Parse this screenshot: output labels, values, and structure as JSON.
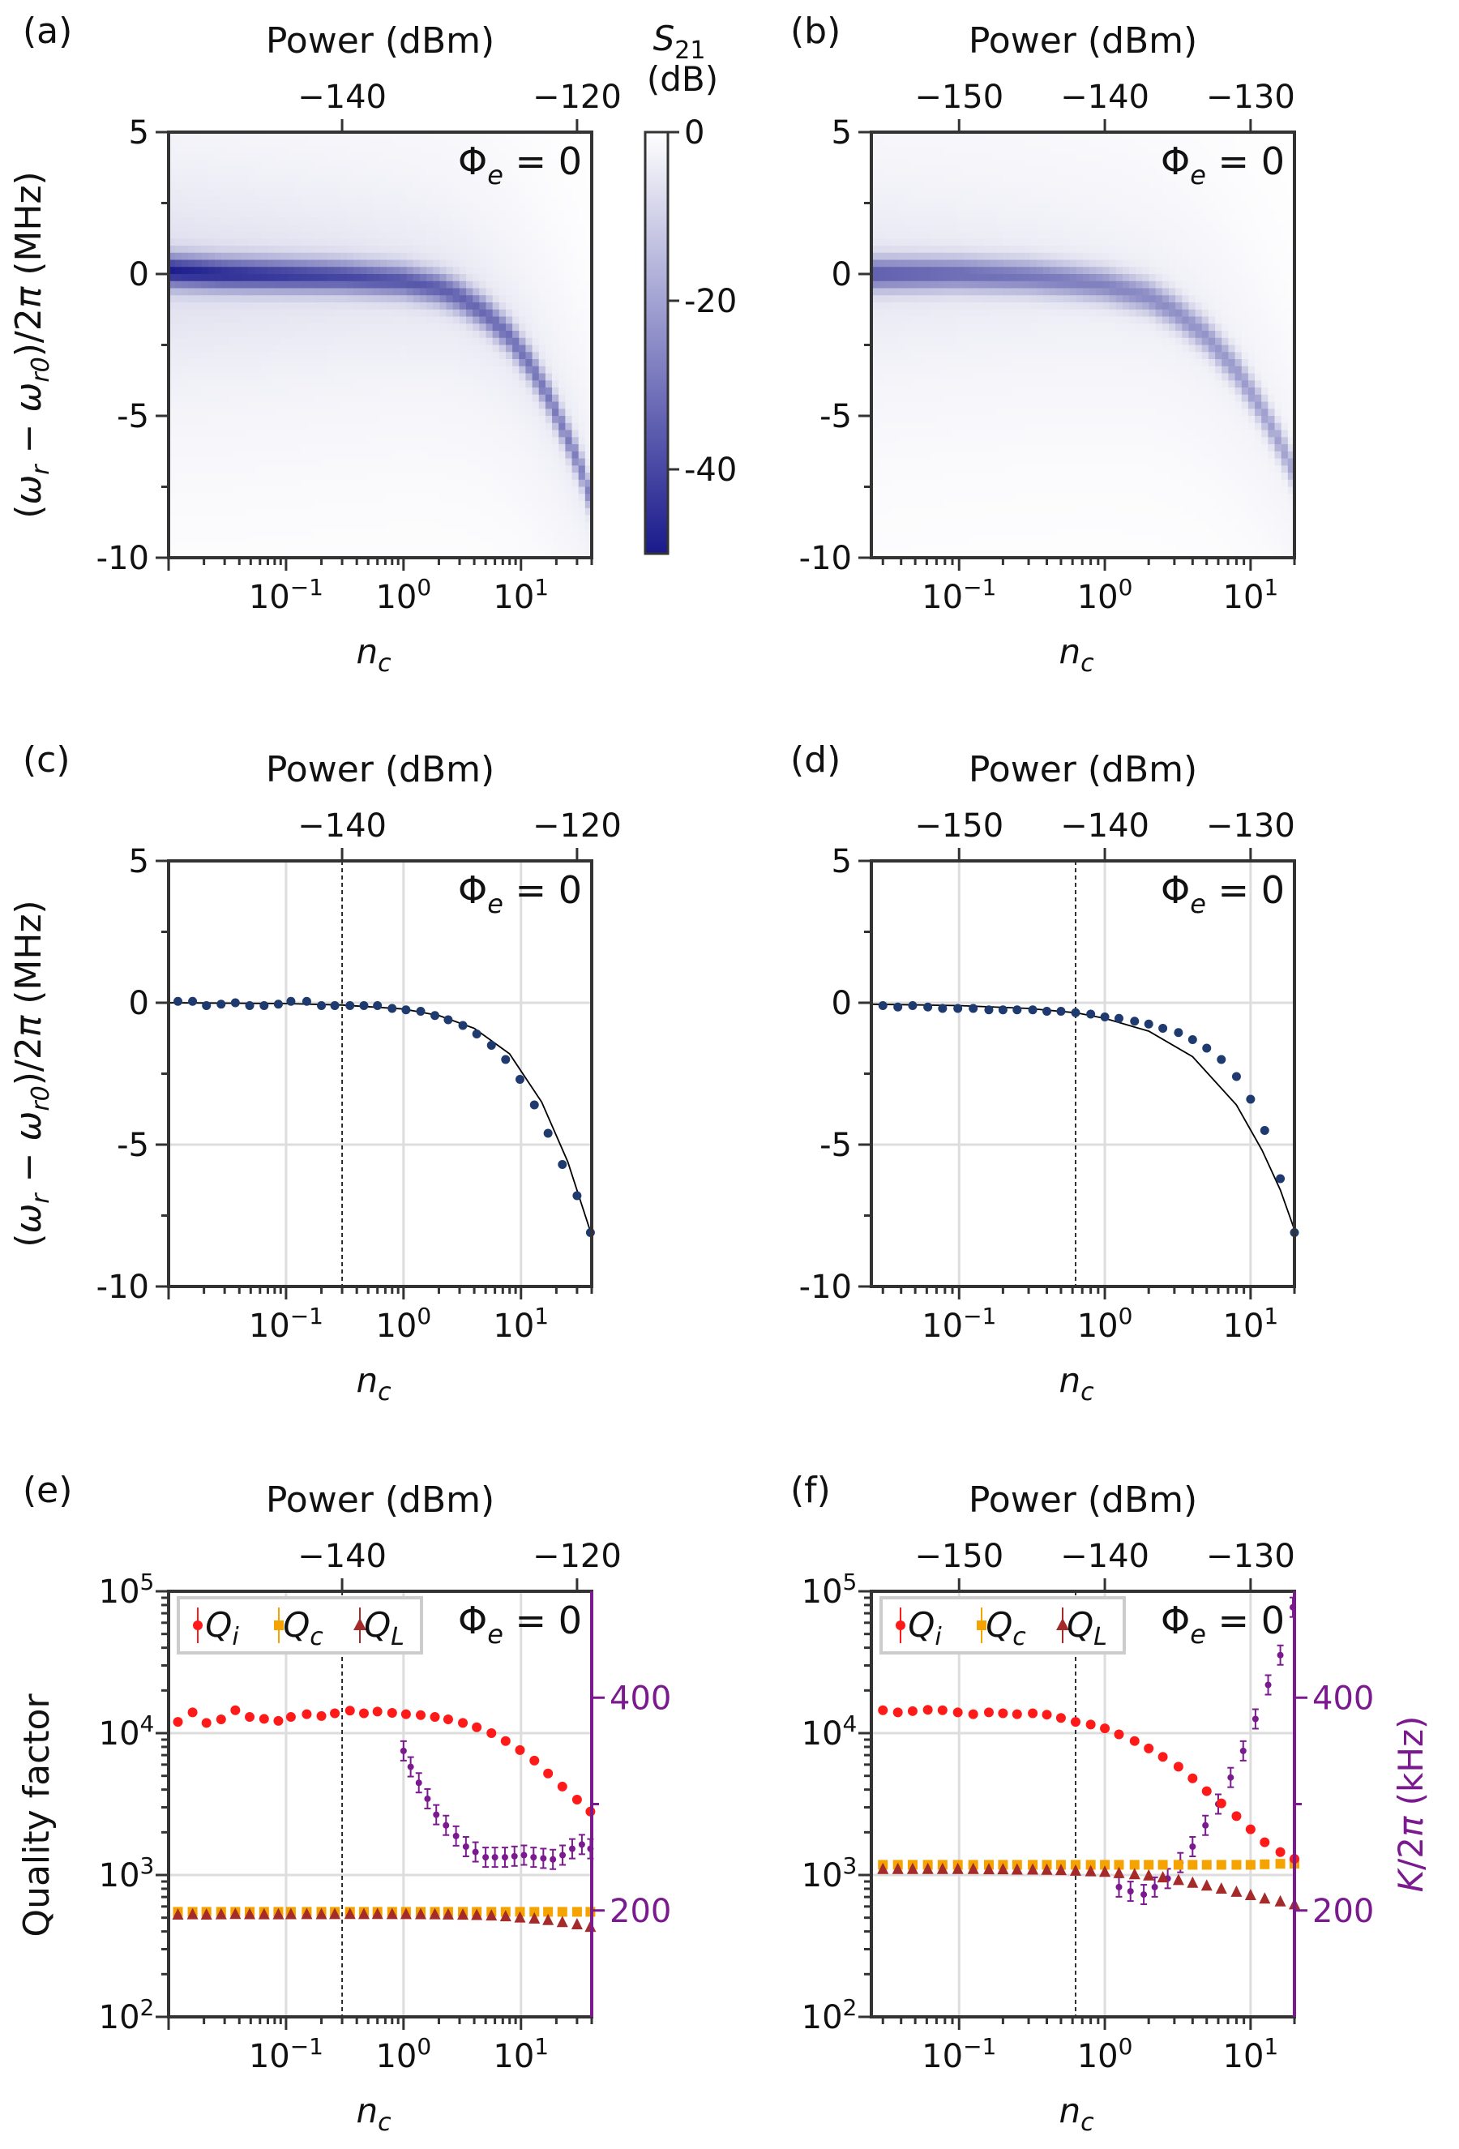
{
  "labels": {
    "panel_letters": [
      "(a)",
      "(b)",
      "(c)",
      "(d)",
      "(e)",
      "(f)"
    ],
    "top_axis_label": "Power (dBm)",
    "x_axis_label": "n",
    "x_axis_label_sub": "c",
    "y_axis_label": "(ω_r − ω_r0)/2π (MHz)",
    "q_axis_label": "Quality factor",
    "k_axis_label": "K/2π (kHz)",
    "phi_label": "Φ_e = 0",
    "colorbar_label_line1": "S21",
    "colorbar_label_line2": "(dB)"
  },
  "colors": {
    "heatmap_max": "#1a1a8c",
    "data_points": "#1f3a6e",
    "qi": "#ff1a1a",
    "qc": "#f5a300",
    "ql": "#a52a2a",
    "kerr": "#7b1a8f",
    "grid": "#dddddd"
  },
  "chart_data": [
    {
      "panel": "(a)",
      "type": "heatmap",
      "xlabel": "n_c",
      "xscale": "log",
      "xlim": [
        0.01,
        40
      ],
      "xticks": [
        "10^-1",
        "10^0",
        "10^1"
      ],
      "top_xlabel": "Power (dBm)",
      "top_xticks": [
        "−140",
        "−120"
      ],
      "ylabel": "(ω_r − ω_r0)/2π (MHz)",
      "ylim": [
        -10,
        5
      ],
      "yticks": [
        "5",
        "0",
        "-5",
        "-10"
      ],
      "annotation": "Φ_e = 0",
      "colorbar": {
        "label": "S21 (dB)",
        "range": [
          -50,
          0
        ],
        "ticks": [
          "0",
          "-20",
          "-40"
        ]
      },
      "resonance": {
        "n_c": [
          0.01,
          0.03,
          0.1,
          0.3,
          1,
          2,
          3,
          5,
          8,
          12,
          18,
          25,
          32,
          40
        ],
        "shift_mhz": [
          0.1,
          0.0,
          -0.05,
          -0.1,
          -0.25,
          -0.5,
          -0.8,
          -1.4,
          -2.2,
          -3.2,
          -4.5,
          -5.8,
          -6.8,
          -8.0
        ],
        "min_db": -48
      }
    },
    {
      "panel": "(b)",
      "type": "heatmap",
      "xlabel": "n_c",
      "xscale": "log",
      "xlim": [
        0.025,
        20
      ],
      "xticks": [
        "10^-1",
        "10^0",
        "10^1"
      ],
      "top_xlabel": "Power (dBm)",
      "top_xticks": [
        "−150",
        "−140",
        "−130"
      ],
      "ylabel": "",
      "ylim": [
        -10,
        5
      ],
      "yticks": [
        "5",
        "0",
        "-5",
        "-10"
      ],
      "annotation": "Φ_e = 0",
      "resonance": {
        "n_c": [
          0.025,
          0.1,
          0.3,
          0.6,
          1,
          2,
          3,
          5,
          8,
          12,
          16,
          20
        ],
        "shift_mhz": [
          0.0,
          0.0,
          -0.1,
          -0.25,
          -0.4,
          -0.8,
          -1.3,
          -2.2,
          -3.4,
          -4.8,
          -6.0,
          -7.0
        ],
        "min_db": -35
      }
    },
    {
      "panel": "(c)",
      "type": "scatter",
      "xlabel": "n_c",
      "xscale": "log",
      "xlim": [
        0.01,
        40
      ],
      "xticks": [
        "10^-1",
        "10^0",
        "10^1"
      ],
      "top_xlabel": "Power (dBm)",
      "top_xticks": [
        "−140",
        "−120"
      ],
      "ylabel": "(ω_r − ω_r0)/2π (MHz)",
      "ylim": [
        -10,
        5
      ],
      "yticks": [
        "5",
        "0",
        "-5",
        "-10"
      ],
      "annotation": "Φ_e = 0",
      "vline_n_c": 0.3,
      "points": {
        "n_c": [
          0.012,
          0.016,
          0.021,
          0.028,
          0.037,
          0.049,
          0.065,
          0.086,
          0.11,
          0.15,
          0.2,
          0.26,
          0.35,
          0.46,
          0.6,
          0.8,
          1.05,
          1.4,
          1.85,
          2.4,
          3.2,
          4.2,
          5.6,
          7.4,
          9.8,
          13,
          17,
          22.5,
          30,
          39
        ],
        "shift_mhz": [
          0.05,
          0.05,
          -0.1,
          -0.05,
          0.0,
          -0.1,
          -0.1,
          -0.05,
          0.05,
          0.05,
          -0.1,
          -0.1,
          -0.1,
          -0.1,
          -0.1,
          -0.2,
          -0.25,
          -0.3,
          -0.45,
          -0.6,
          -0.8,
          -1.1,
          -1.5,
          -2.0,
          -2.7,
          -3.6,
          -4.6,
          -5.7,
          -6.8,
          -8.1
        ]
      },
      "fit": {
        "n_c": [
          0.01,
          0.1,
          0.3,
          1,
          2,
          4,
          8,
          15,
          25,
          40
        ],
        "shift_mhz": [
          0.0,
          -0.03,
          -0.08,
          -0.22,
          -0.45,
          -0.9,
          -1.8,
          -3.5,
          -5.6,
          -8.2
        ]
      }
    },
    {
      "panel": "(d)",
      "type": "scatter",
      "xlabel": "n_c",
      "xscale": "log",
      "xlim": [
        0.025,
        20
      ],
      "xticks": [
        "10^-1",
        "10^0",
        "10^1"
      ],
      "top_xlabel": "Power (dBm)",
      "top_xticks": [
        "−150",
        "−140",
        "−130"
      ],
      "ylabel": "",
      "ylim": [
        -10,
        5
      ],
      "yticks": [
        "5",
        "0",
        "-5",
        "-10"
      ],
      "annotation": "Φ_e = 0",
      "vline_n_c": 0.63,
      "points": {
        "n_c": [
          0.03,
          0.038,
          0.048,
          0.061,
          0.077,
          0.098,
          0.125,
          0.16,
          0.2,
          0.25,
          0.32,
          0.4,
          0.5,
          0.63,
          0.8,
          1.0,
          1.25,
          1.6,
          2.0,
          2.5,
          3.2,
          4.0,
          5.0,
          6.3,
          8.0,
          10,
          12.5,
          16,
          20
        ],
        "shift_mhz": [
          -0.1,
          -0.15,
          -0.1,
          -0.15,
          -0.2,
          -0.2,
          -0.2,
          -0.25,
          -0.25,
          -0.25,
          -0.25,
          -0.3,
          -0.3,
          -0.35,
          -0.4,
          -0.5,
          -0.55,
          -0.65,
          -0.75,
          -0.9,
          -1.05,
          -1.3,
          -1.6,
          -2.0,
          -2.6,
          -3.4,
          -4.5,
          -6.2,
          -8.1
        ]
      },
      "fit": {
        "n_c": [
          0.025,
          0.1,
          0.3,
          0.63,
          1,
          2,
          4,
          8,
          12,
          16,
          20
        ],
        "shift_mhz": [
          -0.05,
          -0.1,
          -0.2,
          -0.35,
          -0.55,
          -1.0,
          -1.9,
          -3.6,
          -5.2,
          -6.6,
          -8.0
        ]
      }
    },
    {
      "panel": "(e)",
      "type": "scatter",
      "xlabel": "n_c",
      "xscale": "log",
      "xlim": [
        0.01,
        40
      ],
      "xticks": [
        "10^-1",
        "10^0",
        "10^1"
      ],
      "top_xlabel": "Power (dBm)",
      "top_xticks": [
        "−140",
        "−120"
      ],
      "ylabel": "Quality factor",
      "yscale": "log",
      "ylim": [
        100,
        100000
      ],
      "yticks": [
        "10^2",
        "10^3",
        "10^4",
        "10^5"
      ],
      "y2label": "",
      "y2lim": [
        100,
        500
      ],
      "y2ticks": [
        "200",
        "400"
      ],
      "annotation": "Φ_e = 0",
      "legend": [
        "Q_i",
        "Q_c",
        "Q_L"
      ],
      "legend_loc": "upper left",
      "vline_n_c": 0.3,
      "n_c": [
        0.012,
        0.016,
        0.021,
        0.028,
        0.037,
        0.049,
        0.065,
        0.086,
        0.11,
        0.15,
        0.2,
        0.26,
        0.35,
        0.46,
        0.6,
        0.8,
        1.05,
        1.4,
        1.85,
        2.4,
        3.2,
        4.2,
        5.6,
        7.4,
        9.8,
        13,
        17,
        22.5,
        30,
        39
      ],
      "series": [
        {
          "name": "Q_i",
          "values": [
            12000,
            14000,
            11800,
            12500,
            14500,
            13000,
            12600,
            12200,
            13000,
            13600,
            13200,
            13800,
            14400,
            13800,
            14200,
            13900,
            13600,
            13400,
            13000,
            12500,
            11800,
            11000,
            10000,
            8800,
            7600,
            6400,
            5200,
            4200,
            3400,
            2800
          ]
        },
        {
          "name": "Q_c",
          "values": [
            550,
            550,
            550,
            550,
            550,
            550,
            550,
            550,
            550,
            550,
            550,
            550,
            550,
            550,
            550,
            550,
            550,
            550,
            550,
            550,
            550,
            550,
            550,
            550,
            550,
            550,
            550,
            550,
            550,
            550
          ]
        },
        {
          "name": "Q_L",
          "values": [
            525,
            527,
            525,
            527,
            530,
            528,
            527,
            527,
            528,
            529,
            528,
            529,
            530,
            529,
            530,
            529,
            529,
            528,
            527,
            526,
            524,
            521,
            517,
            510,
            500,
            492,
            480,
            465,
            448,
            430
          ]
        }
      ],
      "kerr_khz": {
        "n_c": [
          1.0,
          1.15,
          1.35,
          1.6,
          1.9,
          2.3,
          2.8,
          3.4,
          4.1,
          5.0,
          6.0,
          7.3,
          8.8,
          10.6,
          12.8,
          15.5,
          18.7,
          22.6,
          27.3,
          33,
          39
        ],
        "values": [
          350,
          335,
          320,
          305,
          290,
          280,
          270,
          260,
          255,
          250,
          250,
          250,
          251,
          252,
          250,
          249,
          248,
          252,
          258,
          262,
          258
        ]
      }
    },
    {
      "panel": "(f)",
      "type": "scatter",
      "xlabel": "n_c",
      "xscale": "log",
      "xlim": [
        0.025,
        20
      ],
      "xticks": [
        "10^-1",
        "10^0",
        "10^1"
      ],
      "top_xlabel": "Power (dBm)",
      "top_xticks": [
        "−150",
        "−140",
        "−130"
      ],
      "ylabel": "",
      "yscale": "log",
      "ylim": [
        100,
        100000
      ],
      "yticks": [
        "10^2",
        "10^3",
        "10^4",
        "10^5"
      ],
      "y2label": "K/2π (kHz)",
      "y2lim": [
        100,
        500
      ],
      "y2ticks": [
        "200",
        "400"
      ],
      "annotation": "Φ_e = 0",
      "legend": [
        "Q_i",
        "Q_c",
        "Q_L"
      ],
      "legend_loc": "upper left",
      "vline_n_c": 0.63,
      "n_c": [
        0.03,
        0.038,
        0.048,
        0.061,
        0.077,
        0.098,
        0.125,
        0.16,
        0.2,
        0.25,
        0.32,
        0.4,
        0.5,
        0.63,
        0.8,
        1.0,
        1.25,
        1.6,
        2.0,
        2.5,
        3.2,
        4.0,
        5.0,
        6.3,
        8.0,
        10,
        12.5,
        16,
        20
      ],
      "series": [
        {
          "name": "Q_i",
          "values": [
            14500,
            14000,
            14300,
            14600,
            14500,
            14000,
            13600,
            14000,
            13800,
            13600,
            13800,
            13500,
            12800,
            12000,
            11500,
            10800,
            9800,
            8800,
            7800,
            6800,
            5800,
            4800,
            3900,
            3200,
            2600,
            2100,
            1700,
            1450,
            1300
          ]
        },
        {
          "name": "Q_c",
          "values": [
            1180,
            1180,
            1180,
            1180,
            1180,
            1180,
            1180,
            1180,
            1180,
            1180,
            1180,
            1180,
            1180,
            1180,
            1180,
            1180,
            1180,
            1180,
            1180,
            1180,
            1180,
            1180,
            1180,
            1180,
            1180,
            1180,
            1190,
            1200,
            1200
          ]
        },
        {
          "name": "Q_L",
          "values": [
            1100,
            1100,
            1100,
            1100,
            1100,
            1100,
            1100,
            1095,
            1095,
            1090,
            1090,
            1085,
            1080,
            1070,
            1060,
            1050,
            1030,
            1010,
            990,
            960,
            920,
            880,
            840,
            800,
            760,
            720,
            680,
            650,
            620
          ]
        },
        {
          "name": "K/2π",
          "values": []
        }
      ],
      "kerr_khz": {
        "n_c": [
          1.25,
          1.5,
          1.85,
          2.2,
          2.7,
          3.3,
          4.0,
          4.9,
          6.0,
          7.3,
          8.9,
          10.8,
          13.2,
          16,
          19.5
        ],
        "values": [
          222,
          218,
          215,
          222,
          230,
          245,
          260,
          280,
          300,
          325,
          350,
          380,
          412,
          440,
          485
        ]
      }
    }
  ]
}
